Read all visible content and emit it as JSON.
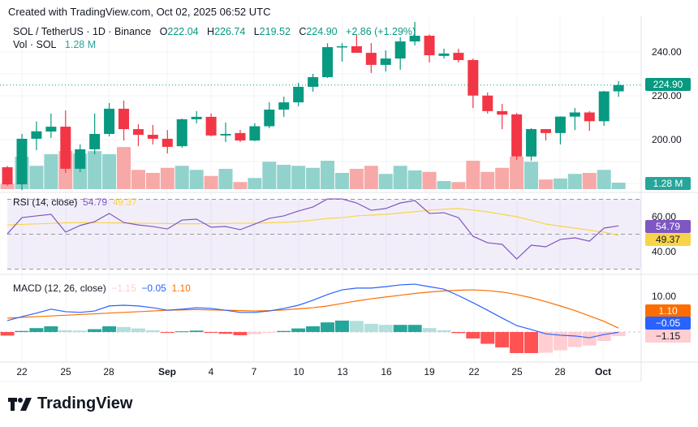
{
  "header": {
    "created": "Created with TradingView.com, Oct 02, 2025 06:52 UTC"
  },
  "legend": {
    "symbol": "SOL / TetherUS · 1D · Binance",
    "o_label": "O",
    "open": "222.04",
    "h_label": "H",
    "high": "226.74",
    "l_label": "L",
    "low": "219.52",
    "c_label": "C",
    "close": "224.90",
    "change": "+2.86 (+1.29%)",
    "vol_label": "Vol · SOL",
    "vol_value": "1.28 M"
  },
  "rsi_legend": {
    "label": "RSI (14, close)",
    "value": "54.79",
    "ma_value": "49.37"
  },
  "macd_legend": {
    "label": "MACD (12, 26, close)",
    "hist": "−1.15",
    "macd": "−0.05",
    "signal": "1.10"
  },
  "price_axis": {
    "ticks": [
      "240.00",
      "220.00",
      "200.00"
    ],
    "last_price": "224.90",
    "last_volume": "1.28 M"
  },
  "rsi_axis": {
    "ticks": [
      "60.00",
      "40.00"
    ],
    "rsi_tag": "54.79",
    "ma_tag": "49.37"
  },
  "macd_axis": {
    "ticks": [
      "10.00"
    ],
    "signal_tag": "1.10",
    "macd_tag": "−0.05",
    "hist_tag": "−1.15"
  },
  "date_axis": [
    "22",
    "25",
    "28",
    "Sep",
    "4",
    "7",
    "10",
    "13",
    "16",
    "19",
    "22",
    "25",
    "28",
    "Oct"
  ],
  "brand": "TradingView",
  "colors": {
    "up": "#089981",
    "down": "#f23645",
    "vol_up": "#92d2cc",
    "vol_down": "#f7a9a7",
    "rsi": "#7e57c2",
    "rsi_ma": "#f7d54b",
    "macd": "#2962ff",
    "signal": "#ff6d00",
    "hist_up_strong": "#26a69a",
    "hist_up_weak": "#b2dfdb",
    "hist_down_strong": "#ff5252",
    "hist_down_weak": "#ffcdd2"
  },
  "chart_data": [
    {
      "type": "candlestick",
      "title": "SOL / TetherUS · 1D · Binance",
      "dates": [
        "Aug 21",
        "Aug 22",
        "Aug 23",
        "Aug 24",
        "Aug 25",
        "Aug 26",
        "Aug 27",
        "Aug 28",
        "Aug 29",
        "Aug 30",
        "Aug 31",
        "Sep 1",
        "Sep 2",
        "Sep 3",
        "Sep 4",
        "Sep 5",
        "Sep 6",
        "Sep 7",
        "Sep 8",
        "Sep 9",
        "Sep 10",
        "Sep 11",
        "Sep 12",
        "Sep 13",
        "Sep 14",
        "Sep 15",
        "Sep 16",
        "Sep 17",
        "Sep 18",
        "Sep 19",
        "Sep 20",
        "Sep 21",
        "Sep 22",
        "Sep 23",
        "Sep 24",
        "Sep 25",
        "Sep 26",
        "Sep 27",
        "Sep 28",
        "Sep 29",
        "Sep 30",
        "Oct 1",
        "Oct 2"
      ],
      "ohlc": [
        [
          187.4,
          188,
          179,
          179.6
        ],
        [
          179.6,
          202.6,
          177,
          200.4
        ],
        [
          200.4,
          208.3,
          195.2,
          203.8
        ],
        [
          203.7,
          211.9,
          200.7,
          205.9
        ],
        [
          205.9,
          213.3,
          184.8,
          186.7
        ],
        [
          186.7,
          197.8,
          185.2,
          195.6
        ],
        [
          195.6,
          211.9,
          193.3,
          202.6
        ],
        [
          202.6,
          216.7,
          201.5,
          214.1
        ],
        [
          214.1,
          217.8,
          199.6,
          204.8
        ],
        [
          204.8,
          207,
          197,
          202.2
        ],
        [
          202.2,
          206.7,
          197.8,
          200.4
        ],
        [
          200.4,
          204.4,
          193.7,
          196.7
        ],
        [
          197,
          209.6,
          196.3,
          209.3
        ],
        [
          209.3,
          213,
          207.4,
          210.4
        ],
        [
          210.4,
          211.9,
          201.5,
          201.9
        ],
        [
          201.9,
          207.8,
          198.9,
          202.6
        ],
        [
          203,
          204.4,
          198.9,
          199.6
        ],
        [
          199.6,
          207.5,
          199.3,
          206.1
        ],
        [
          206.1,
          217,
          205.2,
          213.7
        ],
        [
          213.7,
          219.6,
          210.4,
          217
        ],
        [
          217,
          225.9,
          215.2,
          224.1
        ],
        [
          224.1,
          230,
          221.9,
          228.5
        ],
        [
          228.5,
          244,
          228.1,
          242.2
        ],
        [
          242.2,
          244,
          235.6,
          242.6
        ],
        [
          242.6,
          247.8,
          239.6,
          239.6
        ],
        [
          239.6,
          244,
          230.4,
          234.1
        ],
        [
          234.1,
          240.7,
          231.1,
          237
        ],
        [
          237,
          246.7,
          231.9,
          244.8
        ],
        [
          244.8,
          253.7,
          243,
          247.4
        ],
        [
          247.4,
          248,
          235.2,
          238.5
        ],
        [
          238.2,
          241.5,
          237,
          239.3
        ],
        [
          239.6,
          241.5,
          235.2,
          236.3
        ],
        [
          236.3,
          237,
          214.4,
          220.1
        ],
        [
          220.1,
          221.5,
          211.9,
          213
        ],
        [
          213,
          216.3,
          204.8,
          211.4
        ],
        [
          211.5,
          212.2,
          190.7,
          192.3
        ],
        [
          192.3,
          205.2,
          190.4,
          204.8
        ],
        [
          204.8,
          204.8,
          199.6,
          203
        ],
        [
          203,
          210.6,
          197.8,
          210.5
        ],
        [
          210.5,
          214.4,
          204.4,
          212.4
        ],
        [
          212.4,
          213,
          204,
          208.4
        ],
        [
          208.4,
          222.2,
          206.3,
          222
        ],
        [
          222.04,
          226.74,
          219.52,
          224.9
        ]
      ],
      "volume_millions": [
        1.0,
        6.4,
        4.6,
        6.9,
        7.5,
        7.0,
        7.5,
        6.9,
        8.3,
        3.8,
        3.2,
        4.2,
        4.6,
        3.8,
        2.6,
        4.0,
        1.4,
        2.2,
        5.4,
        4.8,
        4.6,
        4.2,
        5.6,
        3.2,
        4.0,
        4.6,
        3.0,
        4.6,
        3.7,
        3.4,
        1.6,
        1.4,
        5.6,
        3.4,
        4.2,
        6.4,
        5.4,
        1.9,
        2.1,
        3.0,
        3.2,
        3.8,
        1.28
      ],
      "ylim": [
        170,
        255
      ],
      "grid": true
    },
    {
      "type": "line",
      "title": "RSI (14, close)",
      "series": [
        {
          "values": [
            50.2,
            59.5,
            60.5,
            61.4,
            51.2,
            55.0,
            57.2,
            61.9,
            56.7,
            55.3,
            54.4,
            53.0,
            58.1,
            58.6,
            54.0,
            54.4,
            52.6,
            55.8,
            59.1,
            60.5,
            63.3,
            65.6,
            70.2,
            70.2,
            67.9,
            63.7,
            64.7,
            67.9,
            69.3,
            61.9,
            62.3,
            59.5,
            48.8,
            45.1,
            44.2,
            35.8,
            43.7,
            42.8,
            47.0,
            47.9,
            46.0,
            53.5,
            54.79
          ]
        },
        {
          "values": [
            55.3,
            55.6,
            55.9,
            56.2,
            56.5,
            56.7,
            56.6,
            56.5,
            56.4,
            56.3,
            56.2,
            56.1,
            56.0,
            56.0,
            56.1,
            56.2,
            56.3,
            56.3,
            56.5,
            56.8,
            57.2,
            58.1,
            59.0,
            59.5,
            60.5,
            61.0,
            61.4,
            62.1,
            62.9,
            63.7,
            64.3,
            64.7,
            63.8,
            62.8,
            61.4,
            60.0,
            58.0,
            55.8,
            54.6,
            53.5,
            52.3,
            51.2,
            49.37
          ]
        }
      ],
      "bands": [
        70,
        50,
        30
      ],
      "ylim": [
        28,
        72
      ]
    },
    {
      "type": "line",
      "title": "MACD (12, 26, close)",
      "series": [
        {
          "values": [
            3.2,
            4.3,
            5.3,
            6.4,
            5.7,
            5.5,
            5.9,
            7.3,
            7.5,
            7.3,
            6.8,
            6.1,
            6.4,
            6.8,
            6.6,
            6.1,
            5.5,
            5.5,
            5.9,
            6.6,
            7.5,
            8.9,
            10.5,
            11.8,
            12.3,
            12.3,
            12.7,
            13.2,
            13.4,
            12.7,
            12.0,
            10.2,
            8.2,
            6.1,
            3.9,
            1.8,
            0.7,
            -0.5,
            -0.9,
            -1.1,
            -1.6,
            -0.7,
            -0.05
          ]
        },
        {
          "values": [
            3.9,
            4.1,
            4.3,
            4.5,
            4.7,
            4.9,
            5.1,
            5.3,
            5.5,
            5.7,
            5.9,
            6.1,
            6.2,
            6.3,
            6.2,
            6.1,
            6.0,
            5.9,
            6.0,
            6.2,
            6.5,
            6.8,
            7.3,
            8.0,
            8.7,
            9.3,
            9.8,
            10.3,
            10.8,
            11.2,
            11.5,
            11.7,
            11.8,
            11.6,
            11.2,
            10.5,
            9.6,
            8.5,
            7.3,
            6.0,
            4.5,
            3.0,
            1.1
          ]
        }
      ],
      "histogram": [
        -1.0,
        0.3,
        1.1,
        1.6,
        0.5,
        0.4,
        0.8,
        1.6,
        1.4,
        1.0,
        0.5,
        -0.2,
        0.2,
        0.4,
        -0.2,
        -0.5,
        -0.9,
        -0.6,
        -0.2,
        0.3,
        1.0,
        1.6,
        2.7,
        3.2,
        3.1,
        2.3,
        2.0,
        2.0,
        2.0,
        1.1,
        0.5,
        -0.3,
        -1.8,
        -3.3,
        -4.3,
        -5.9,
        -5.9,
        -5.8,
        -5.1,
        -4.2,
        -3.8,
        -2.5,
        -1.15
      ]
    }
  ]
}
